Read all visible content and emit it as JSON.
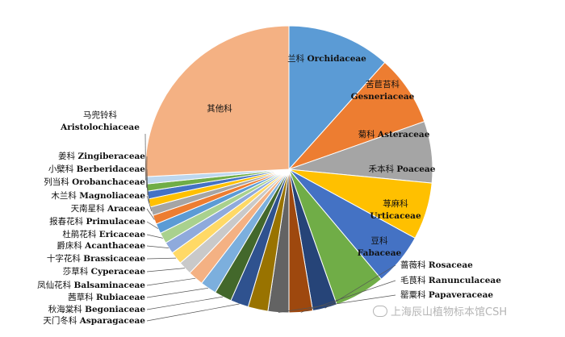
{
  "chart_data": {
    "type": "pie",
    "title": "",
    "legend": "none",
    "slices": [
      {
        "zh": "兰科",
        "lat": "Orchidaceae",
        "value": 11.4,
        "color": "#5b9bd5"
      },
      {
        "zh": "苦苣苔科",
        "lat": "Gesneriaceae",
        "value": 7.8,
        "color": "#ed7d31"
      },
      {
        "zh": "菊科",
        "lat": "Asteraceae",
        "value": 6.8,
        "color": "#a5a5a5"
      },
      {
        "zh": "禾本科",
        "lat": "Poaceae",
        "value": 6.3,
        "color": "#ffc000"
      },
      {
        "zh": "荨麻科",
        "lat": "Urticaceae",
        "value": 5.8,
        "color": "#4472c4"
      },
      {
        "zh": "豆科",
        "lat": "Fabaceae",
        "value": 5.6,
        "color": "#70ad47"
      },
      {
        "zh": "蔷薇科",
        "lat": "Rosaceae",
        "value": 2.7,
        "color": "#264478"
      },
      {
        "zh": "毛茛科",
        "lat": "Ranunculaceae",
        "value": 2.6,
        "color": "#9e480e"
      },
      {
        "zh": "罂粟科",
        "lat": "Papaveraceae",
        "value": 2.3,
        "color": "#636363"
      },
      {
        "zh": "",
        "lat": "",
        "value": 2.2,
        "color": "#997300"
      },
      {
        "zh": "天门冬科",
        "lat": "Asparagaceae",
        "value": 2.0,
        "color": "#2f528f"
      },
      {
        "zh": "秋海棠科",
        "lat": "Begoniaceae",
        "value": 1.9,
        "color": "#43682b"
      },
      {
        "zh": "茜草科",
        "lat": "Rubiaceae",
        "value": 1.8,
        "color": "#7cafdd"
      },
      {
        "zh": "凤仙花科",
        "lat": "Balsaminaceae",
        "value": 1.7,
        "color": "#f4b183"
      },
      {
        "zh": "莎草科",
        "lat": "Cyperaceae",
        "value": 1.5,
        "color": "#c9c9c9"
      },
      {
        "zh": "十字花科",
        "lat": "Brassicaceae",
        "value": 1.4,
        "color": "#ffd966"
      },
      {
        "zh": "爵床科",
        "lat": "Acanthaceae",
        "value": 1.3,
        "color": "#8faadc"
      },
      {
        "zh": "杜鹃花科",
        "lat": "Ericaceae",
        "value": 1.2,
        "color": "#a9d18e"
      },
      {
        "zh": "报春花科",
        "lat": "Primulaceae",
        "value": 1.1,
        "color": "#5b9bd5"
      },
      {
        "zh": "天南星科",
        "lat": "Araceae",
        "value": 1.0,
        "color": "#ed7d31"
      },
      {
        "zh": "木兰科",
        "lat": "Magnoliaceae",
        "value": 0.95,
        "color": "#a5a5a5"
      },
      {
        "zh": "列当科",
        "lat": "Orobanchaceae",
        "value": 0.9,
        "color": "#ffc000"
      },
      {
        "zh": "小檗科",
        "lat": "Berberidaceae",
        "value": 0.85,
        "color": "#4472c4"
      },
      {
        "zh": "姜科",
        "lat": "Zingiberaceae",
        "value": 0.8,
        "color": "#70ad47"
      },
      {
        "zh": "马兜铃科",
        "lat": "Aristolochiaceae",
        "value": 0.8,
        "color": "#bdd7ee"
      },
      {
        "zh": "其他科",
        "lat": "",
        "value": 25.3,
        "color": "#f4b183"
      }
    ]
  },
  "watermark": {
    "text": "上海辰山植物标本馆CSH",
    "icon": "wechat-icon"
  }
}
